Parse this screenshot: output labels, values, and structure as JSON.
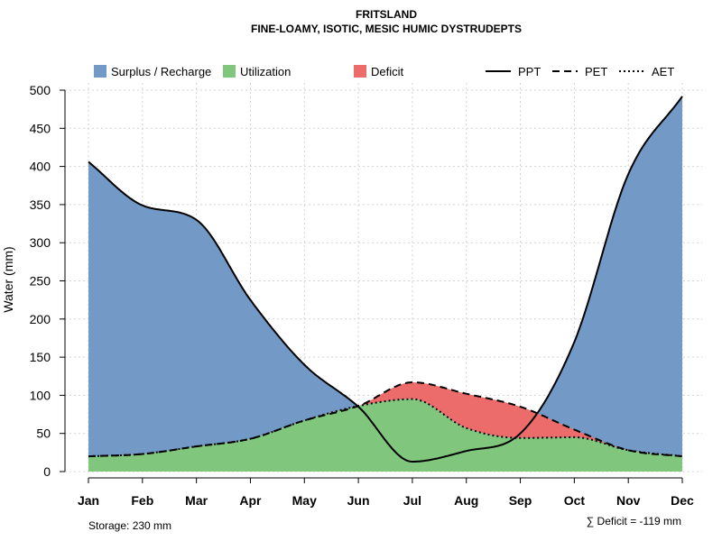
{
  "chart_data": {
    "type": "area",
    "title": "FRITSLAND",
    "subtitle": "FINE-LOAMY, ISOTIC, MESIC HUMIC DYSTRUDEPTS",
    "xlabel": "",
    "ylabel": "Water (mm)",
    "ylim": [
      0,
      500
    ],
    "yticks": [
      0,
      50,
      100,
      150,
      200,
      250,
      300,
      350,
      400,
      450,
      500
    ],
    "grid": true,
    "categories": [
      "Jan",
      "Feb",
      "Mar",
      "Apr",
      "May",
      "Jun",
      "Jul",
      "Aug",
      "Sep",
      "Oct",
      "Nov",
      "Dec"
    ],
    "series": [
      {
        "name": "PPT",
        "line_style": "solid",
        "values": [
          406,
          349,
          330,
          225,
          140,
          85,
          13,
          27,
          50,
          170,
          390,
          492
        ]
      },
      {
        "name": "PET",
        "line_style": "dashed",
        "values": [
          20,
          23,
          33,
          43,
          67,
          86,
          117,
          102,
          85,
          55,
          28,
          20
        ]
      },
      {
        "name": "AET",
        "line_style": "dotted",
        "values": [
          20,
          23,
          33,
          43,
          67,
          86,
          95,
          57,
          44,
          45,
          28,
          20
        ]
      }
    ],
    "legend": {
      "fills": [
        {
          "label": "Surplus / Recharge",
          "color": "#7399c6"
        },
        {
          "label": "Utilization",
          "color": "#80c67c"
        },
        {
          "label": "Deficit",
          "color": "#ec6c6c"
        }
      ],
      "lines": [
        {
          "label": "PPT",
          "style": "solid"
        },
        {
          "label": "PET",
          "style": "dashed"
        },
        {
          "label": "AET",
          "style": "dotted"
        }
      ]
    },
    "annotations": {
      "storage": "Storage: 230 mm",
      "deficit": "∑ Deficit = -119 mm"
    }
  }
}
